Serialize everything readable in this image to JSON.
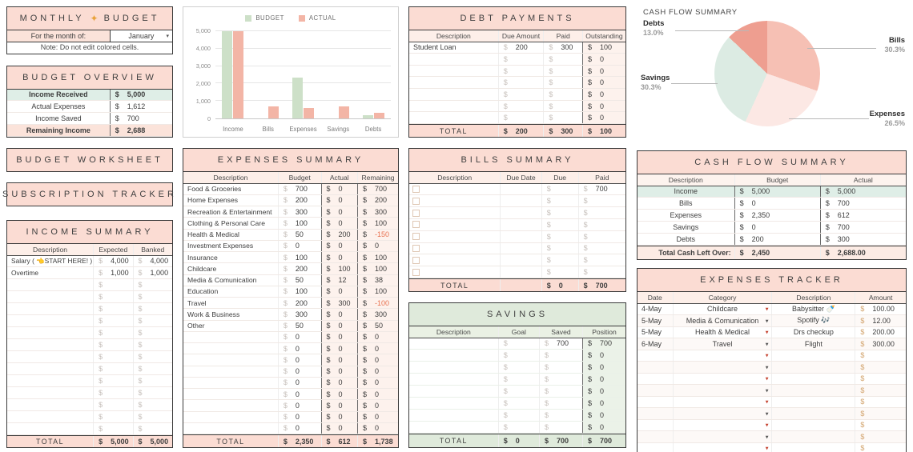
{
  "currency": "$",
  "monthly_budget": {
    "title_left": "MONTHLY",
    "title_icon": "✦",
    "title_right": "BUDGET",
    "month_label": "For the month of:",
    "month_value": "January",
    "note": "Note: Do not edit colored cells."
  },
  "budget_overview": {
    "title": "BUDGET OVERVIEW",
    "rows": [
      {
        "label": "Income Received",
        "amount": "5,000",
        "cls": "row-mint bold"
      },
      {
        "label": "Actual Expenses",
        "amount": "1,612",
        "cls": ""
      },
      {
        "label": "Income Saved",
        "amount": "700",
        "cls": ""
      },
      {
        "label": "Remaining Income",
        "amount": "2,688",
        "cls": "row-pink bold"
      }
    ]
  },
  "budget_worksheet": {
    "title": "BUDGET WORKSHEET"
  },
  "subscription_tracker": {
    "title": "SUBSCRIPTION TRACKER"
  },
  "income_summary": {
    "title": "INCOME SUMMARY",
    "headers": [
      "Description",
      "Expected",
      "Banked"
    ],
    "rows": [
      {
        "description": "Salary ( 👈START HERE! )",
        "expected": "4,000",
        "banked": "4,000"
      },
      {
        "description": "Overtime",
        "expected": "1,000",
        "banked": "1,000"
      },
      {
        "description": "",
        "expected": "",
        "banked": ""
      },
      {
        "description": "",
        "expected": "",
        "banked": ""
      },
      {
        "description": "",
        "expected": "",
        "banked": ""
      },
      {
        "description": "",
        "expected": "",
        "banked": ""
      },
      {
        "description": "",
        "expected": "",
        "banked": ""
      },
      {
        "description": "",
        "expected": "",
        "banked": ""
      },
      {
        "description": "",
        "expected": "",
        "banked": ""
      },
      {
        "description": "",
        "expected": "",
        "banked": ""
      },
      {
        "description": "",
        "expected": "",
        "banked": ""
      },
      {
        "description": "",
        "expected": "",
        "banked": ""
      },
      {
        "description": "",
        "expected": "",
        "banked": ""
      },
      {
        "description": "",
        "expected": "",
        "banked": ""
      },
      {
        "description": "",
        "expected": "",
        "banked": ""
      }
    ],
    "total_label": "TOTAL",
    "total_expected": "5,000",
    "total_banked": "5,000"
  },
  "expenses_summary": {
    "title": "EXPENSES SUMMARY",
    "headers": [
      "Description",
      "Budget",
      "Actual",
      "Remaining"
    ],
    "rows": [
      {
        "description": "Food & Groceries",
        "budget": "700",
        "actual": "0",
        "remaining": "700"
      },
      {
        "description": "Home Expenses",
        "budget": "200",
        "actual": "0",
        "remaining": "200"
      },
      {
        "description": "Recreation & Entertainment",
        "budget": "300",
        "actual": "0",
        "remaining": "300"
      },
      {
        "description": "Clothing & Personal Care",
        "budget": "100",
        "actual": "0",
        "remaining": "100"
      },
      {
        "description": "Health & Medical",
        "budget": "50",
        "actual": "200",
        "remaining": "-150"
      },
      {
        "description": "Investment Expenses",
        "budget": "0",
        "actual": "0",
        "remaining": "0"
      },
      {
        "description": "Insurance",
        "budget": "100",
        "actual": "0",
        "remaining": "100"
      },
      {
        "description": "Childcare",
        "budget": "200",
        "actual": "100",
        "remaining": "100"
      },
      {
        "description": "Media & Comunication",
        "budget": "50",
        "actual": "12",
        "remaining": "38"
      },
      {
        "description": "Education",
        "budget": "100",
        "actual": "0",
        "remaining": "100"
      },
      {
        "description": "Travel",
        "budget": "200",
        "actual": "300",
        "remaining": "-100"
      },
      {
        "description": "Work & Business",
        "budget": "300",
        "actual": "0",
        "remaining": "300"
      },
      {
        "description": "Other",
        "budget": "50",
        "actual": "0",
        "remaining": "50"
      },
      {
        "description": "",
        "budget": "0",
        "actual": "0",
        "remaining": "0"
      },
      {
        "description": "",
        "budget": "0",
        "actual": "0",
        "remaining": "0"
      },
      {
        "description": "",
        "budget": "0",
        "actual": "0",
        "remaining": "0"
      },
      {
        "description": "",
        "budget": "0",
        "actual": "0",
        "remaining": "0"
      },
      {
        "description": "",
        "budget": "0",
        "actual": "0",
        "remaining": "0"
      },
      {
        "description": "",
        "budget": "0",
        "actual": "0",
        "remaining": "0"
      },
      {
        "description": "",
        "budget": "0",
        "actual": "0",
        "remaining": "0"
      },
      {
        "description": "",
        "budget": "0",
        "actual": "0",
        "remaining": "0"
      },
      {
        "description": "",
        "budget": "0",
        "actual": "0",
        "remaining": "0"
      }
    ],
    "total_label": "TOTAL",
    "total_budget": "2,350",
    "total_actual": "612",
    "total_remaining": "1,738"
  },
  "debt_payments": {
    "title": "DEBT PAYMENTS",
    "headers": [
      "Description",
      "Due Amount",
      "Paid",
      "Outstanding"
    ],
    "rows": [
      {
        "description": "Student Loan",
        "due_amount": "200",
        "paid": "300",
        "outstanding": "100"
      },
      {
        "description": "",
        "due_amount": "",
        "paid": "",
        "outstanding": "0"
      },
      {
        "description": "",
        "due_amount": "",
        "paid": "",
        "outstanding": "0"
      },
      {
        "description": "",
        "due_amount": "",
        "paid": "",
        "outstanding": "0"
      },
      {
        "description": "",
        "due_amount": "",
        "paid": "",
        "outstanding": "0"
      },
      {
        "description": "",
        "due_amount": "",
        "paid": "",
        "outstanding": "0"
      },
      {
        "description": "",
        "due_amount": "",
        "paid": "",
        "outstanding": "0"
      }
    ],
    "total_label": "TOTAL",
    "total_due": "200",
    "total_paid": "300",
    "total_outstanding": "100"
  },
  "bills_summary": {
    "title": "BILLS SUMMARY",
    "headers": [
      "Description",
      "Due Date",
      "Due",
      "Paid"
    ],
    "rows": [
      {
        "description": "",
        "due_date": "",
        "due": "",
        "paid": "700"
      },
      {
        "description": "",
        "due_date": "",
        "due": "",
        "paid": ""
      },
      {
        "description": "",
        "due_date": "",
        "due": "",
        "paid": ""
      },
      {
        "description": "",
        "due_date": "",
        "due": "",
        "paid": ""
      },
      {
        "description": "",
        "due_date": "",
        "due": "",
        "paid": ""
      },
      {
        "description": "",
        "due_date": "",
        "due": "",
        "paid": ""
      },
      {
        "description": "",
        "due_date": "",
        "due": "",
        "paid": ""
      },
      {
        "description": "",
        "due_date": "",
        "due": "",
        "paid": ""
      }
    ],
    "total_label": "TOTAL",
    "total_due": "0",
    "total_paid": "700"
  },
  "savings": {
    "title": "SAVINGS",
    "headers": [
      "Description",
      "Goal",
      "Saved",
      "Position"
    ],
    "rows": [
      {
        "description": "",
        "goal": "",
        "saved": "700",
        "position": "700"
      },
      {
        "description": "",
        "goal": "",
        "saved": "",
        "position": "0"
      },
      {
        "description": "",
        "goal": "",
        "saved": "",
        "position": "0"
      },
      {
        "description": "",
        "goal": "",
        "saved": "",
        "position": "0"
      },
      {
        "description": "",
        "goal": "",
        "saved": "",
        "position": "0"
      },
      {
        "description": "",
        "goal": "",
        "saved": "",
        "position": "0"
      },
      {
        "description": "",
        "goal": "",
        "saved": "",
        "position": "0"
      },
      {
        "description": "",
        "goal": "",
        "saved": "",
        "position": "0"
      }
    ],
    "total_label": "TOTAL",
    "total_goal": "0",
    "total_saved": "700",
    "total_position": "700"
  },
  "cash_flow_table": {
    "title": "CASH FLOW SUMMARY",
    "headers": [
      "Description",
      "Budget",
      "Actual"
    ],
    "rows": [
      {
        "description": "Income",
        "budget": "5,000",
        "actual": "5,000",
        "cls": "row-mint"
      },
      {
        "description": "Bills",
        "budget": "0",
        "actual": "700",
        "cls": ""
      },
      {
        "description": "Expenses",
        "budget": "2,350",
        "actual": "612",
        "cls": ""
      },
      {
        "description": "Savings",
        "budget": "0",
        "actual": "700",
        "cls": ""
      },
      {
        "description": "Debts",
        "budget": "200",
        "actual": "300",
        "cls": ""
      }
    ],
    "total_label": "Total Cash Left Over:",
    "total_budget": "2,450",
    "total_actual": "2,688.00"
  },
  "expenses_tracker": {
    "title": "EXPENSES TRACKER",
    "headers": [
      "Date",
      "Category",
      "Description",
      "Amount"
    ],
    "rows": [
      {
        "date": "4-May",
        "category": "Childcare",
        "description": "Babysitter 🍼",
        "amount": "100.00"
      },
      {
        "date": "5-May",
        "category": "Media & Comunication",
        "description": "Spotify 🎶",
        "amount": "12.00"
      },
      {
        "date": "5-May",
        "category": "Health & Medical",
        "description": "Drs checkup",
        "amount": "200.00"
      },
      {
        "date": "6-May",
        "category": "Travel",
        "description": "Flight",
        "amount": "300.00"
      },
      {
        "date": "",
        "category": "",
        "description": "",
        "amount": ""
      },
      {
        "date": "",
        "category": "",
        "description": "",
        "amount": ""
      },
      {
        "date": "",
        "category": "",
        "description": "",
        "amount": ""
      },
      {
        "date": "",
        "category": "",
        "description": "",
        "amount": ""
      },
      {
        "date": "",
        "category": "",
        "description": "",
        "amount": ""
      },
      {
        "date": "",
        "category": "",
        "description": "",
        "amount": ""
      },
      {
        "date": "",
        "category": "",
        "description": "",
        "amount": ""
      },
      {
        "date": "",
        "category": "",
        "description": "",
        "amount": ""
      },
      {
        "date": "",
        "category": "",
        "description": "",
        "amount": ""
      }
    ]
  },
  "chart_data": [
    {
      "type": "bar",
      "title": "",
      "categories": [
        "Income",
        "Bills",
        "Expenses",
        "Savings",
        "Debts"
      ],
      "series": [
        {
          "name": "BUDGET",
          "color": "#cde0c8",
          "values": [
            5000,
            0,
            2350,
            0,
            200
          ]
        },
        {
          "name": "ACTUAL",
          "color": "#f3b5a6",
          "values": [
            5000,
            700,
            612,
            700,
            300
          ]
        }
      ],
      "ylim": [
        0,
        5000
      ],
      "yticks": [
        "0",
        "1,000",
        "2,000",
        "3,000",
        "4,000",
        "5,000"
      ],
      "grid": true,
      "legend_position": "top"
    },
    {
      "type": "pie",
      "title": "CASH FLOW SUMMARY",
      "slices": [
        {
          "label": "Bills",
          "value": 30.3,
          "pct_label": "30.3%",
          "color": "#f6c0b4"
        },
        {
          "label": "Expenses",
          "value": 26.5,
          "pct_label": "26.5%",
          "color": "#fce8e4"
        },
        {
          "label": "Savings",
          "value": 30.3,
          "pct_label": "30.3%",
          "color": "#dcebe3"
        },
        {
          "label": "Debts",
          "value": 13.0,
          "pct_label": "13.0%",
          "color": "#ee9e90"
        }
      ]
    }
  ]
}
